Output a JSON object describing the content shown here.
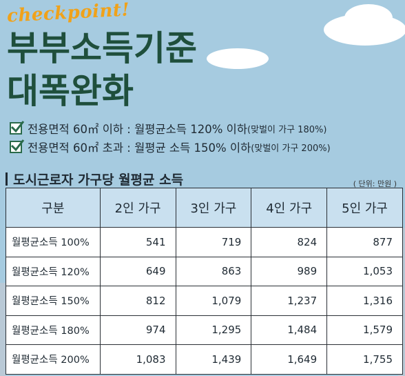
{
  "header": {
    "checkpoint": "checkpoint!",
    "title_line1": "부부소득기준",
    "title_line2": "대폭완화"
  },
  "checklist": [
    {
      "main": "전용면적 60㎡ 이하 : 월평균소득 120% 이하",
      "note": "(맞벌이 가구 180%)"
    },
    {
      "main": "전용면적 60㎡ 초과 : 월평균 소득 150% 이하",
      "note": "(맞벌이 가구 200%)"
    }
  ],
  "section": {
    "title": "도시근로자 가구당 월평균 소득",
    "unit": "( 단위: 만원 )"
  },
  "table": {
    "headers": [
      "구분",
      "2인 가구",
      "3인 가구",
      "4인 가구",
      "5인 가구"
    ],
    "rows": [
      [
        "월평균소득 100%",
        "541",
        "719",
        "824",
        "877"
      ],
      [
        "월평균소득 120%",
        "649",
        "863",
        "989",
        "1,053"
      ],
      [
        "월평균소득 150%",
        "812",
        "1,079",
        "1,237",
        "1,316"
      ],
      [
        "월평균소득 180%",
        "974",
        "1,295",
        "1,484",
        "1,579"
      ],
      [
        "월평균소득 200%",
        "1,083",
        "1,439",
        "1,649",
        "1,755"
      ]
    ]
  },
  "colors": {
    "background": "#a6cbe0",
    "title": "#1f4f3c",
    "accent": "#f0a21a",
    "table_header": "#c9e0ef"
  }
}
